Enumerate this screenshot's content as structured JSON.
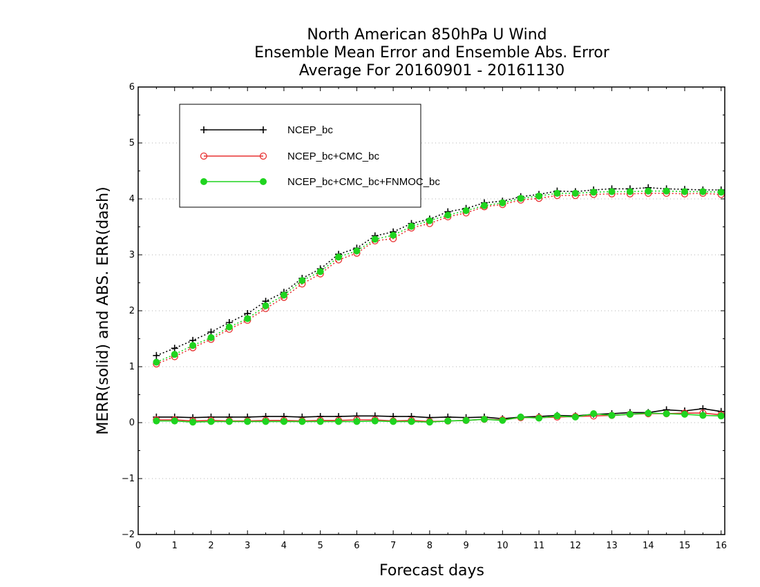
{
  "chart_data": {
    "type": "line",
    "title": [
      "North American 850hPa U Wind",
      "Ensemble Mean Error and Ensemble Abs. Error",
      "Average For 20160901 - 20161130"
    ],
    "xlabel": "Forecast days",
    "ylabel": "MERR(solid) and ABS. ERR(dash)",
    "xlim": [
      0,
      16.1
    ],
    "ylim": [
      -2,
      6
    ],
    "xticks": [
      "0",
      "1",
      "2",
      "3",
      "4",
      "5",
      "6",
      "7",
      "8",
      "9",
      "10",
      "11",
      "12",
      "13",
      "14",
      "15",
      "16"
    ],
    "yticks": [
      "−2",
      "−1",
      "0",
      "1",
      "2",
      "3",
      "4",
      "5",
      "6"
    ],
    "grid": "horizontal dotted",
    "legend_position": "top-left",
    "x": [
      0.5,
      1,
      1.5,
      2,
      2.5,
      3,
      3.5,
      4,
      4.5,
      5,
      5.5,
      6,
      6.5,
      7,
      7.5,
      8,
      8.5,
      9,
      9.5,
      10,
      10.5,
      11,
      11.5,
      12,
      12.5,
      13,
      13.5,
      14,
      14.5,
      15,
      15.5,
      16
    ],
    "series": [
      {
        "name": "NCEP_bc",
        "color": "#000000",
        "marker": "plus",
        "merr": [
          0.1,
          0.1,
          0.09,
          0.1,
          0.1,
          0.1,
          0.11,
          0.11,
          0.1,
          0.11,
          0.11,
          0.12,
          0.12,
          0.11,
          0.11,
          0.09,
          0.1,
          0.09,
          0.1,
          0.07,
          0.1,
          0.11,
          0.13,
          0.12,
          0.15,
          0.16,
          0.18,
          0.18,
          0.23,
          0.21,
          0.25,
          0.2
        ],
        "abserr": [
          1.2,
          1.33,
          1.47,
          1.62,
          1.79,
          1.95,
          2.17,
          2.33,
          2.58,
          2.75,
          3.01,
          3.12,
          3.34,
          3.41,
          3.56,
          3.64,
          3.77,
          3.83,
          3.93,
          3.96,
          4.04,
          4.08,
          4.14,
          4.13,
          4.16,
          4.18,
          4.18,
          4.2,
          4.18,
          4.17,
          4.16,
          4.16
        ]
      },
      {
        "name": "NCEP_bc+CMC_bc",
        "color": "#e83030",
        "marker": "open-circle",
        "merr": [
          0.05,
          0.05,
          0.03,
          0.04,
          0.03,
          0.03,
          0.04,
          0.04,
          0.03,
          0.04,
          0.04,
          0.05,
          0.05,
          0.03,
          0.04,
          0.02,
          0.03,
          0.04,
          0.06,
          0.05,
          0.09,
          0.09,
          0.1,
          0.11,
          0.12,
          0.13,
          0.15,
          0.16,
          0.16,
          0.17,
          0.17,
          0.14
        ],
        "abserr": [
          1.05,
          1.18,
          1.34,
          1.49,
          1.67,
          1.83,
          2.04,
          2.24,
          2.48,
          2.66,
          2.91,
          3.03,
          3.25,
          3.29,
          3.48,
          3.56,
          3.68,
          3.75,
          3.86,
          3.9,
          3.98,
          4.01,
          4.06,
          4.06,
          4.08,
          4.09,
          4.09,
          4.1,
          4.1,
          4.09,
          4.1,
          4.08
        ]
      },
      {
        "name": "NCEP_bc+CMC_bc+FNMOC_bc",
        "color": "#1fd41f",
        "marker": "filled-circle",
        "merr": [
          0.03,
          0.03,
          0.01,
          0.02,
          0.02,
          0.02,
          0.02,
          0.02,
          0.02,
          0.02,
          0.02,
          0.02,
          0.03,
          0.02,
          0.02,
          0.01,
          0.03,
          0.04,
          0.06,
          0.04,
          0.1,
          0.08,
          0.12,
          0.1,
          0.16,
          0.13,
          0.15,
          0.17,
          0.16,
          0.15,
          0.13,
          0.12
        ],
        "abserr": [
          1.08,
          1.22,
          1.38,
          1.52,
          1.71,
          1.86,
          2.09,
          2.28,
          2.54,
          2.7,
          2.96,
          3.07,
          3.28,
          3.35,
          3.51,
          3.61,
          3.71,
          3.79,
          3.88,
          3.93,
          4.01,
          4.05,
          4.1,
          4.1,
          4.12,
          4.13,
          4.13,
          4.14,
          4.14,
          4.13,
          4.13,
          4.12
        ]
      }
    ]
  }
}
